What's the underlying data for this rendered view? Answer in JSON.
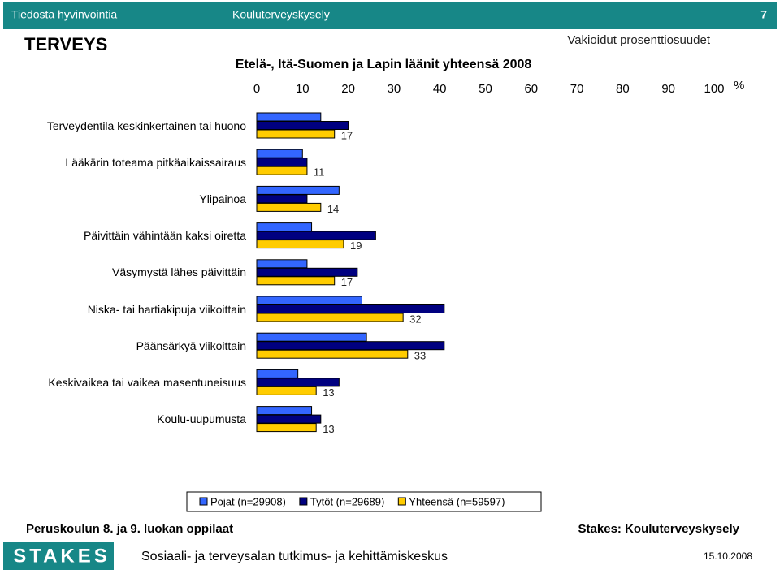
{
  "header": {
    "left": "Tiedosta hyvinvointia",
    "center": "Kouluterveyskysely",
    "page": "7"
  },
  "section_title": "TERVEYS",
  "subtitle": "Vakioidut prosenttiosuudet",
  "chart_data": {
    "type": "bar",
    "orientation": "horizontal",
    "title": "Etelä-, Itä-Suomen ja Lapin läänit yhteensä 2008",
    "x_unit": "%",
    "categories": [
      "Terveydentila keskinkertainen tai huono",
      "Lääkärin toteama pitkäaikaissairaus",
      "Ylipainoa",
      "Päivittäin vähintään kaksi oiretta",
      "Väsymystä lähes päivittäin",
      "Niska- tai hartiakipuja viikoittain",
      "Päänsärkyä viikoittain",
      "Keskivaikea tai vaikea masentuneisuus",
      "Koulu-uupumusta"
    ],
    "series": [
      {
        "name": "Pojat (n=29908)",
        "color": "#3366ff",
        "values": [
          14,
          10,
          18,
          12,
          11,
          23,
          24,
          9,
          12
        ],
        "show_labels": false
      },
      {
        "name": "Tytöt (n=29689)",
        "color": "#000080",
        "values": [
          20,
          11,
          11,
          26,
          22,
          41,
          41,
          18,
          14
        ],
        "show_labels": false
      },
      {
        "name": "Yhteensä (n=59597)",
        "color": "#ffcc00",
        "values": [
          17,
          11,
          14,
          19,
          17,
          32,
          33,
          13,
          13
        ],
        "show_labels": true
      }
    ],
    "xlim": [
      0,
      100
    ],
    "xticks": [
      0,
      10,
      20,
      30,
      40,
      50,
      60,
      70,
      80,
      90,
      100
    ],
    "legend": "bottom"
  },
  "footer": {
    "left": "Peruskoulun 8. ja 9. luokan oppilaat",
    "right": "Stakes: Kouluterveyskysely",
    "logo": "STAKES",
    "org": "Sosiaali- ja terveysalan tutkimus- ja kehittämiskeskus",
    "date": "15.10.2008"
  }
}
